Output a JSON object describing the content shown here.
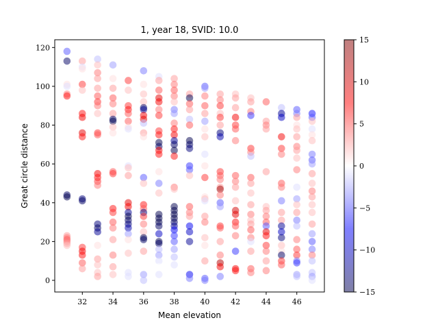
{
  "chart_data": {
    "type": "scatter",
    "title": "1, year 18, SVID: 10.0",
    "xlabel": "Mean elevation",
    "ylabel": "Great circle distance",
    "xlim": [
      30.2,
      47.8
    ],
    "ylim": [
      -6,
      124
    ],
    "xticks": [
      32,
      34,
      36,
      38,
      40,
      42,
      44,
      46
    ],
    "yticks": [
      0,
      20,
      40,
      60,
      80,
      100,
      120
    ],
    "grid": false,
    "colorbar": {
      "min": -15,
      "max": 15,
      "ticks": [
        -15,
        -10,
        -5,
        0,
        5,
        10,
        15
      ],
      "colormap": "seismic",
      "alpha": 0.5
    },
    "points": [
      [
        31,
        118,
        -5
      ],
      [
        31,
        113,
        -14
      ],
      [
        31,
        101,
        1
      ],
      [
        31,
        100,
        -1
      ],
      [
        31,
        96,
        4
      ],
      [
        31,
        95,
        7
      ],
      [
        31,
        44,
        -14
      ],
      [
        31,
        43,
        -15
      ],
      [
        31,
        23,
        3
      ],
      [
        31,
        22,
        4
      ],
      [
        31,
        21,
        5
      ],
      [
        31,
        20,
        4
      ],
      [
        31,
        19,
        3
      ],
      [
        31,
        18,
        2
      ],
      [
        32,
        113,
        3
      ],
      [
        32,
        110,
        -1
      ],
      [
        32,
        109,
        1
      ],
      [
        32,
        101,
        6
      ],
      [
        32,
        98,
        2
      ],
      [
        32,
        86,
        7
      ],
      [
        32,
        84,
        8
      ],
      [
        32,
        76,
        9
      ],
      [
        32,
        74,
        7
      ],
      [
        32,
        42,
        -13
      ],
      [
        32,
        41,
        -14
      ],
      [
        32,
        17,
        6
      ],
      [
        32,
        15,
        8
      ],
      [
        32,
        13,
        7
      ],
      [
        32,
        9,
        5
      ],
      [
        32,
        6,
        3
      ],
      [
        33,
        114,
        -2
      ],
      [
        33,
        111,
        2
      ],
      [
        33,
        107,
        4
      ],
      [
        33,
        104,
        3
      ],
      [
        33,
        99,
        3
      ],
      [
        33,
        95,
        5
      ],
      [
        33,
        92,
        6
      ],
      [
        33,
        90,
        4
      ],
      [
        33,
        86,
        2
      ],
      [
        33,
        76,
        6
      ],
      [
        33,
        75,
        5
      ],
      [
        33,
        55,
        8
      ],
      [
        33,
        53,
        7
      ],
      [
        33,
        51,
        6
      ],
      [
        33,
        49,
        4
      ],
      [
        33,
        29,
        -13
      ],
      [
        33,
        27,
        -14
      ],
      [
        33,
        25,
        -12
      ],
      [
        33,
        18,
        1
      ],
      [
        33,
        11,
        3
      ],
      [
        33,
        8,
        2
      ],
      [
        33,
        4,
        2
      ],
      [
        33,
        2,
        3
      ],
      [
        34,
        111,
        -3
      ],
      [
        34,
        104,
        1
      ],
      [
        34,
        99,
        3
      ],
      [
        34,
        94,
        5
      ],
      [
        34,
        91,
        4
      ],
      [
        34,
        86,
        3
      ],
      [
        34,
        83,
        -14
      ],
      [
        34,
        82,
        -15
      ],
      [
        34,
        79,
        2
      ],
      [
        34,
        76,
        1
      ],
      [
        34,
        56,
        5
      ],
      [
        34,
        55,
        6
      ],
      [
        34,
        37,
        7
      ],
      [
        34,
        35,
        6
      ],
      [
        34,
        30,
        5
      ],
      [
        34,
        27,
        4
      ],
      [
        34,
        21,
        3
      ],
      [
        34,
        13,
        4
      ],
      [
        34,
        7,
        3
      ],
      [
        34,
        3,
        2
      ],
      [
        35,
        103,
        6
      ],
      [
        35,
        98,
        2
      ],
      [
        35,
        90,
        6
      ],
      [
        35,
        88,
        7
      ],
      [
        35,
        86,
        5
      ],
      [
        35,
        82,
        5
      ],
      [
        35,
        79,
        1
      ],
      [
        35,
        78,
        -1
      ],
      [
        35,
        59,
        -1
      ],
      [
        35,
        58,
        2
      ],
      [
        35,
        54,
        3
      ],
      [
        35,
        40,
        9
      ],
      [
        35,
        38,
        8
      ],
      [
        35,
        35,
        -12
      ],
      [
        35,
        33,
        -15
      ],
      [
        35,
        31,
        -14
      ],
      [
        35,
        29,
        -13
      ],
      [
        35,
        27,
        -11
      ],
      [
        35,
        24,
        -3
      ],
      [
        35,
        21,
        1
      ],
      [
        35,
        14,
        2
      ],
      [
        35,
        4,
        -1
      ],
      [
        35,
        2,
        -1
      ],
      [
        36,
        108,
        -4
      ],
      [
        36,
        101,
        1
      ],
      [
        36,
        96,
        2
      ],
      [
        36,
        92,
        2
      ],
      [
        36,
        89,
        -14
      ],
      [
        36,
        88,
        -12
      ],
      [
        36,
        85,
        8
      ],
      [
        36,
        83,
        9
      ],
      [
        36,
        81,
        -2
      ],
      [
        36,
        76,
        3
      ],
      [
        36,
        74,
        1
      ],
      [
        36,
        53,
        -5
      ],
      [
        36,
        50,
        2
      ],
      [
        36,
        39,
        7
      ],
      [
        36,
        37,
        5
      ],
      [
        36,
        35,
        -13
      ],
      [
        36,
        33,
        6
      ],
      [
        36,
        29,
        4
      ],
      [
        36,
        25,
        2
      ],
      [
        36,
        22,
        -15
      ],
      [
        36,
        21,
        -14
      ],
      [
        36,
        15,
        3
      ],
      [
        36,
        3,
        -3
      ],
      [
        36,
        0,
        -2
      ],
      [
        37,
        105,
        -1
      ],
      [
        37,
        103,
        3
      ],
      [
        37,
        98,
        5
      ],
      [
        37,
        94,
        9
      ],
      [
        37,
        92,
        8
      ],
      [
        37,
        88,
        4
      ],
      [
        37,
        85,
        6
      ],
      [
        37,
        77,
        6
      ],
      [
        37,
        75,
        7
      ],
      [
        37,
        71,
        -15
      ],
      [
        37,
        69,
        -14
      ],
      [
        37,
        67,
        8
      ],
      [
        37,
        65,
        7
      ],
      [
        37,
        56,
        1
      ],
      [
        37,
        50,
        -4
      ],
      [
        37,
        45,
        2
      ],
      [
        37,
        34,
        -15
      ],
      [
        37,
        32,
        -15
      ],
      [
        37,
        30,
        -15
      ],
      [
        37,
        28,
        -14
      ],
      [
        37,
        24,
        -10
      ],
      [
        37,
        20,
        -15
      ],
      [
        37,
        19,
        -14
      ],
      [
        37,
        16,
        -2
      ],
      [
        37,
        13,
        -3
      ],
      [
        37,
        10,
        -1
      ],
      [
        37,
        7,
        0
      ],
      [
        37,
        3,
        -1
      ],
      [
        38,
        104,
        3
      ],
      [
        38,
        101,
        4
      ],
      [
        38,
        98,
        5
      ],
      [
        38,
        95,
        4
      ],
      [
        38,
        92,
        2
      ],
      [
        38,
        88,
        -4
      ],
      [
        38,
        86,
        -3
      ],
      [
        38,
        81,
        4
      ],
      [
        38,
        78,
        7
      ],
      [
        38,
        75,
        8
      ],
      [
        38,
        72,
        -12
      ],
      [
        38,
        70,
        -14
      ],
      [
        38,
        67,
        -15
      ],
      [
        38,
        64,
        7
      ],
      [
        38,
        48,
        4
      ],
      [
        38,
        47,
        2
      ],
      [
        38,
        38,
        -15
      ],
      [
        38,
        36,
        -15
      ],
      [
        38,
        34,
        -15
      ],
      [
        38,
        32,
        -15
      ],
      [
        38,
        30,
        -14
      ],
      [
        38,
        28,
        -12
      ],
      [
        38,
        26,
        -8
      ],
      [
        38,
        23,
        -6
      ],
      [
        38,
        20,
        -5
      ],
      [
        38,
        16,
        -3
      ],
      [
        38,
        12,
        -2
      ],
      [
        38,
        8,
        -1
      ],
      [
        38,
        4,
        0
      ],
      [
        39,
        96,
        3
      ],
      [
        39,
        94,
        -15
      ],
      [
        39,
        91,
        5
      ],
      [
        39,
        88,
        3
      ],
      [
        39,
        83,
        -2
      ],
      [
        39,
        80,
        5
      ],
      [
        39,
        72,
        -15
      ],
      [
        39,
        70,
        -14
      ],
      [
        39,
        68,
        -13
      ],
      [
        39,
        59,
        -6
      ],
      [
        39,
        57,
        -5
      ],
      [
        39,
        54,
        2
      ],
      [
        39,
        38,
        5
      ],
      [
        39,
        35,
        4
      ],
      [
        39,
        33,
        3
      ],
      [
        39,
        28,
        -8
      ],
      [
        39,
        25,
        -10
      ],
      [
        39,
        20,
        -12
      ],
      [
        39,
        3,
        -8
      ],
      [
        39,
        1,
        -4
      ],
      [
        40,
        100,
        -5
      ],
      [
        40,
        99,
        -3
      ],
      [
        40,
        95,
        4
      ],
      [
        40,
        90,
        5
      ],
      [
        40,
        86,
        3
      ],
      [
        40,
        82,
        -3
      ],
      [
        40,
        78,
        1
      ],
      [
        40,
        74,
        2
      ],
      [
        40,
        65,
        -1
      ],
      [
        40,
        59,
        1
      ],
      [
        40,
        53,
        6
      ],
      [
        40,
        43,
        1
      ],
      [
        40,
        42,
        2
      ],
      [
        40,
        41,
        -1
      ],
      [
        40,
        33,
        3
      ],
      [
        40,
        30,
        4
      ],
      [
        40,
        22,
        2
      ],
      [
        40,
        18,
        1
      ],
      [
        40,
        10,
        3
      ],
      [
        40,
        1,
        -5
      ],
      [
        40,
        0,
        -4
      ],
      [
        41,
        96,
        3
      ],
      [
        41,
        93,
        4
      ],
      [
        41,
        90,
        6
      ],
      [
        41,
        86,
        2
      ],
      [
        41,
        84,
        6
      ],
      [
        41,
        80,
        3
      ],
      [
        41,
        76,
        -13
      ],
      [
        41,
        74,
        -11
      ],
      [
        41,
        56,
        6
      ],
      [
        41,
        54,
        5
      ],
      [
        41,
        52,
        4
      ],
      [
        41,
        48,
        3
      ],
      [
        41,
        47,
        13
      ],
      [
        41,
        44,
        4
      ],
      [
        41,
        40,
        -5
      ],
      [
        41,
        38,
        -3
      ],
      [
        41,
        28,
        6
      ],
      [
        41,
        27,
        5
      ],
      [
        41,
        20,
        3
      ],
      [
        41,
        13,
        4
      ],
      [
        41,
        9,
        12
      ],
      [
        41,
        7,
        8
      ],
      [
        41,
        2,
        -4
      ],
      [
        42,
        96,
        2
      ],
      [
        42,
        94,
        3
      ],
      [
        42,
        89,
        3
      ],
      [
        42,
        84,
        8
      ],
      [
        42,
        80,
        6
      ],
      [
        42,
        78,
        5
      ],
      [
        42,
        72,
        4
      ],
      [
        42,
        54,
        5
      ],
      [
        42,
        51,
        4
      ],
      [
        42,
        48,
        3
      ],
      [
        42,
        41,
        2
      ],
      [
        42,
        36,
        10
      ],
      [
        42,
        34,
        9
      ],
      [
        42,
        30,
        7
      ],
      [
        42,
        28,
        5
      ],
      [
        42,
        23,
        4
      ],
      [
        42,
        15,
        -6
      ],
      [
        42,
        6,
        8
      ],
      [
        42,
        5,
        7
      ],
      [
        43,
        94,
        2
      ],
      [
        43,
        92,
        3
      ],
      [
        43,
        87,
        4
      ],
      [
        43,
        85,
        -6
      ],
      [
        43,
        68,
        6
      ],
      [
        43,
        66,
        4
      ],
      [
        43,
        64,
        -2
      ],
      [
        43,
        53,
        5
      ],
      [
        43,
        50,
        3
      ],
      [
        43,
        45,
        2
      ],
      [
        43,
        39,
        3
      ],
      [
        43,
        34,
        4
      ],
      [
        43,
        31,
        2
      ],
      [
        43,
        29,
        3
      ],
      [
        43,
        26,
        5
      ],
      [
        43,
        22,
        4
      ],
      [
        43,
        20,
        -1
      ],
      [
        43,
        15,
        3
      ],
      [
        43,
        6,
        5
      ],
      [
        43,
        4,
        4
      ],
      [
        44,
        92,
        5
      ],
      [
        44,
        82,
        3
      ],
      [
        44,
        80,
        4
      ],
      [
        44,
        78,
        3
      ],
      [
        44,
        56,
        3
      ],
      [
        44,
        38,
        2
      ],
      [
        44,
        36,
        3
      ],
      [
        44,
        33,
        4
      ],
      [
        44,
        30,
        5
      ],
      [
        44,
        28,
        -5
      ],
      [
        44,
        25,
        9
      ],
      [
        44,
        23,
        7
      ],
      [
        44,
        18,
        6
      ],
      [
        44,
        15,
        4
      ],
      [
        44,
        10,
        3
      ],
      [
        44,
        5,
        4
      ],
      [
        45,
        89,
        -2
      ],
      [
        45,
        86,
        -12
      ],
      [
        45,
        84,
        -10
      ],
      [
        45,
        74,
        8
      ],
      [
        45,
        68,
        6
      ],
      [
        45,
        65,
        4
      ],
      [
        45,
        50,
        5
      ],
      [
        45,
        48,
        4
      ],
      [
        45,
        41,
        -4
      ],
      [
        45,
        35,
        3
      ],
      [
        45,
        31,
        3
      ],
      [
        45,
        28,
        -12
      ],
      [
        45,
        25,
        -10
      ],
      [
        45,
        22,
        -13
      ],
      [
        45,
        18,
        2
      ],
      [
        45,
        15,
        1
      ],
      [
        45,
        13,
        -14
      ],
      [
        45,
        10,
        6
      ],
      [
        45,
        8,
        5
      ],
      [
        46,
        88,
        -5
      ],
      [
        46,
        86,
        -4
      ],
      [
        46,
        84,
        3
      ],
      [
        46,
        80,
        1
      ],
      [
        46,
        78,
        2
      ],
      [
        46,
        74,
        3
      ],
      [
        46,
        69,
        4
      ],
      [
        46,
        67,
        3
      ],
      [
        46,
        63,
        2
      ],
      [
        46,
        57,
        4
      ],
      [
        46,
        48,
        -1
      ],
      [
        46,
        42,
        -3
      ],
      [
        46,
        39,
        2
      ],
      [
        46,
        35,
        3
      ],
      [
        46,
        31,
        -4
      ],
      [
        46,
        28,
        -2
      ],
      [
        46,
        21,
        4
      ],
      [
        46,
        16,
        5
      ],
      [
        46,
        13,
        6
      ],
      [
        46,
        10,
        -4
      ],
      [
        46,
        9,
        -6
      ],
      [
        46,
        3,
        -3
      ],
      [
        46,
        2,
        -2
      ],
      [
        47,
        86,
        -7
      ],
      [
        47,
        84,
        -5
      ],
      [
        47,
        82,
        2
      ],
      [
        47,
        78,
        -1
      ],
      [
        47,
        75,
        1
      ],
      [
        47,
        72,
        2
      ],
      [
        47,
        65,
        -4
      ],
      [
        47,
        62,
        -5
      ],
      [
        47,
        60,
        -3
      ],
      [
        47,
        55,
        3
      ],
      [
        47,
        50,
        2
      ],
      [
        47,
        46,
        4
      ],
      [
        47,
        43,
        3
      ],
      [
        47,
        39,
        2
      ],
      [
        47,
        35,
        2
      ],
      [
        47,
        29,
        3
      ],
      [
        47,
        24,
        -3
      ],
      [
        47,
        20,
        -5
      ],
      [
        47,
        16,
        -4
      ],
      [
        47,
        13,
        4
      ],
      [
        47,
        10,
        -2
      ],
      [
        47,
        4,
        -2
      ],
      [
        47,
        2,
        -3
      ],
      [
        47,
        0,
        -1
      ]
    ]
  }
}
